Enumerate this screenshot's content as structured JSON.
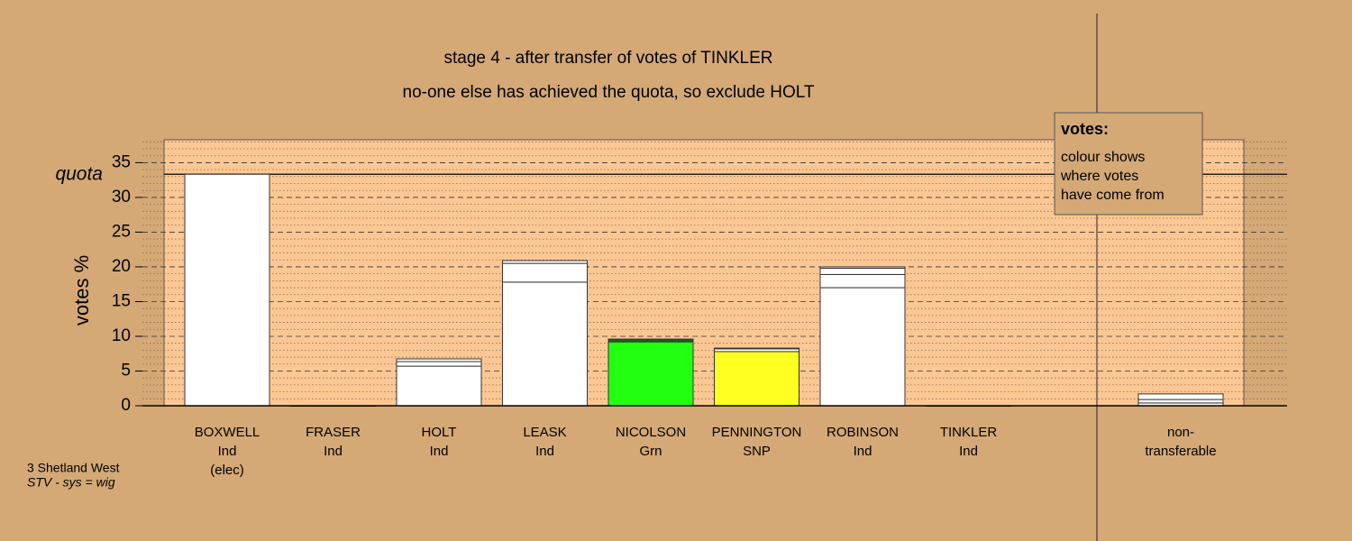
{
  "chart_data": {
    "type": "stacked-bar",
    "title": "stage 4 - after transfer of votes of TINKLER",
    "subtitle": "no-one else has achieved the quota, so exclude HOLT",
    "y_label": "votes %",
    "quota_label": "quota",
    "quota": 33.33,
    "ylim": [
      0,
      38.3
    ],
    "yticks": [
      0,
      5,
      10,
      15,
      20,
      25,
      30,
      35
    ],
    "minor_yticks": [
      1,
      2,
      3,
      4,
      6,
      7,
      8,
      9,
      11,
      12,
      13,
      14,
      16,
      17,
      18,
      19,
      21,
      22,
      23,
      24,
      26,
      27,
      28,
      29,
      31,
      32,
      33,
      34,
      36,
      37,
      38
    ],
    "categories": [
      [
        "BOXWELL",
        "Ind",
        "(elec)"
      ],
      [
        "FRASER",
        "Ind"
      ],
      [
        "HOLT",
        "Ind"
      ],
      [
        "LEASK",
        "Ind"
      ],
      [
        "NICOLSON",
        "Grn"
      ],
      [
        "PENNINGTON",
        "SNP"
      ],
      [
        "ROBINSON",
        "Ind"
      ],
      [
        "TINKLER",
        "Ind"
      ],
      [
        "non-",
        "transferable"
      ]
    ],
    "stacks": [
      [
        33.33
      ],
      [
        0
      ],
      [
        5.7,
        0.66,
        0.39
      ],
      [
        17.8,
        2.7,
        0.4
      ],
      [
        9.2,
        0.4
      ],
      [
        7.8,
        0.4,
        0.1
      ],
      [
        17.0,
        1.9,
        0.9,
        0.2
      ],
      [
        0
      ],
      [
        0.4,
        0.5,
        0.8
      ]
    ],
    "segment_colors": [
      [
        "#ffffff"
      ],
      [
        "#ffffff"
      ],
      [
        "#ffffff",
        "#ffffff",
        "#ffffff"
      ],
      [
        "#ffffff",
        "#ffffff",
        "#ffffff"
      ],
      [
        "#22ff11",
        "#1d5a1d"
      ],
      [
        "#ffff22",
        "#ffffff",
        "#ffffff"
      ],
      [
        "#ffffff",
        "#ffffff",
        "#ffffff",
        "#ffffff"
      ],
      [
        "#ffffff"
      ],
      [
        "#ffffff",
        "#ffffff",
        "#ffffff"
      ]
    ],
    "plot_background": "#fdc794",
    "legend": {
      "title": "votes:",
      "lines": [
        "colour shows",
        "where votes",
        "have come from"
      ]
    },
    "footer": [
      "3 Shetland West",
      "STV - sys = wig"
    ]
  }
}
